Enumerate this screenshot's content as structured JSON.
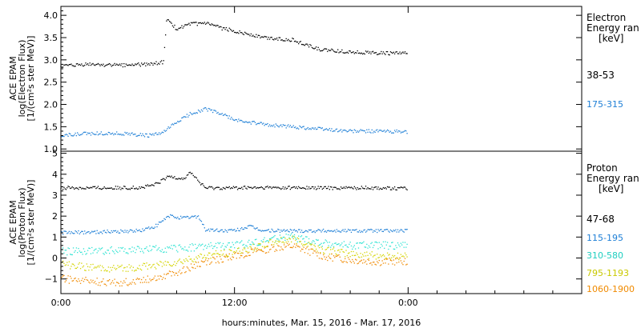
{
  "chart_data": [
    {
      "type": "scatter",
      "ylabel": [
        "ACE EPAM",
        "log(Electron Flux)",
        "[1/(cm²s ster MeV)]"
      ],
      "ylim": [
        0.95,
        4.2
      ],
      "yticks": [
        1.0,
        1.5,
        2.0,
        2.5,
        3.0,
        3.5,
        4.0
      ],
      "ytick_labels": [
        "1.0",
        "1.5",
        "2.0",
        "2.5",
        "3.0",
        "3.5",
        "4.0"
      ],
      "legend_title": [
        "Electron",
        "Energy ran",
        "[keV]"
      ],
      "series": [
        {
          "name": "38-53",
          "color": "#000000",
          "x": [
            0,
            2,
            4,
            6,
            7.1,
            7.3,
            8,
            9,
            10,
            11,
            12,
            14,
            16,
            18,
            20,
            22,
            24
          ],
          "y": [
            2.85,
            2.9,
            2.88,
            2.9,
            2.95,
            3.9,
            3.7,
            3.8,
            3.82,
            3.72,
            3.65,
            3.5,
            3.45,
            3.22,
            3.18,
            3.15,
            3.15
          ]
        },
        {
          "name": "175-315",
          "color": "#1e7fd6",
          "x": [
            0,
            2,
            4,
            6,
            7,
            8,
            9,
            10,
            11,
            12,
            14,
            16,
            18,
            20,
            22,
            24
          ],
          "y": [
            1.3,
            1.35,
            1.35,
            1.3,
            1.35,
            1.6,
            1.8,
            1.9,
            1.8,
            1.65,
            1.55,
            1.5,
            1.45,
            1.4,
            1.4,
            1.38
          ]
        }
      ]
    },
    {
      "type": "scatter",
      "ylabel": [
        "ACE EPAM",
        "log(Proton Flux)",
        "[1/(cm²s ster MeV)]"
      ],
      "ylim": [
        -1.7,
        5.1
      ],
      "yticks": [
        -1,
        0,
        1,
        2,
        3,
        4,
        5
      ],
      "ytick_labels": [
        "−1",
        "0",
        "1",
        "2",
        "3",
        "4",
        "5"
      ],
      "legend_title": [
        "Proton",
        "Energy ran",
        "[keV]"
      ],
      "series": [
        {
          "name": "47-68",
          "color": "#000000",
          "x": [
            0,
            3,
            5.5,
            6.5,
            7.5,
            8.5,
            9,
            9.6,
            10,
            11,
            14,
            18,
            22,
            24
          ],
          "y": [
            3.35,
            3.35,
            3.35,
            3.5,
            3.9,
            3.8,
            4.1,
            3.6,
            3.35,
            3.35,
            3.35,
            3.35,
            3.35,
            3.3
          ]
        },
        {
          "name": "115-195",
          "color": "#1e7fd6",
          "x": [
            0,
            3,
            5.5,
            6.5,
            7.5,
            8.5,
            9.5,
            10,
            11,
            12,
            13,
            14,
            18,
            22,
            24
          ],
          "y": [
            1.2,
            1.25,
            1.3,
            1.5,
            2.0,
            1.9,
            2.0,
            1.35,
            1.3,
            1.3,
            1.5,
            1.3,
            1.3,
            1.3,
            1.3
          ]
        },
        {
          "name": "310-580",
          "color": "#2ee3d2",
          "x": [
            0,
            3,
            6,
            8,
            10,
            12,
            14,
            15,
            16,
            17,
            18,
            20,
            22,
            24
          ],
          "y": [
            0.3,
            0.35,
            0.4,
            0.45,
            0.55,
            0.6,
            0.8,
            1.0,
            1.0,
            0.85,
            0.7,
            0.6,
            0.6,
            0.6
          ]
        },
        {
          "name": "795-1193",
          "color": "#d4d400",
          "x": [
            0,
            2,
            4,
            6,
            8,
            10,
            12,
            14,
            15,
            16,
            17,
            18,
            20,
            22,
            24
          ],
          "y": [
            -0.3,
            -0.45,
            -0.5,
            -0.4,
            -0.2,
            0.1,
            0.3,
            0.6,
            0.8,
            0.9,
            0.7,
            0.4,
            0.2,
            0.1,
            0.1
          ]
        },
        {
          "name": "1060-1900",
          "color": "#f08a00",
          "x": [
            0,
            2,
            4,
            6,
            8,
            10,
            12,
            14,
            15,
            16,
            17,
            18,
            20,
            22,
            24
          ],
          "y": [
            -1.0,
            -1.1,
            -1.2,
            -1.0,
            -0.7,
            -0.2,
            0.1,
            0.4,
            0.5,
            0.55,
            0.35,
            0.1,
            -0.1,
            -0.2,
            -0.15
          ]
        }
      ]
    }
  ],
  "x_axis": {
    "xlim": [
      0,
      36
    ],
    "ticks": [
      0,
      12,
      24
    ],
    "tick_labels": [
      "0:00",
      "12:00",
      "0:00"
    ],
    "xlabel": "hours:minutes, Mar. 15, 2016 - Mar. 17, 2016"
  }
}
